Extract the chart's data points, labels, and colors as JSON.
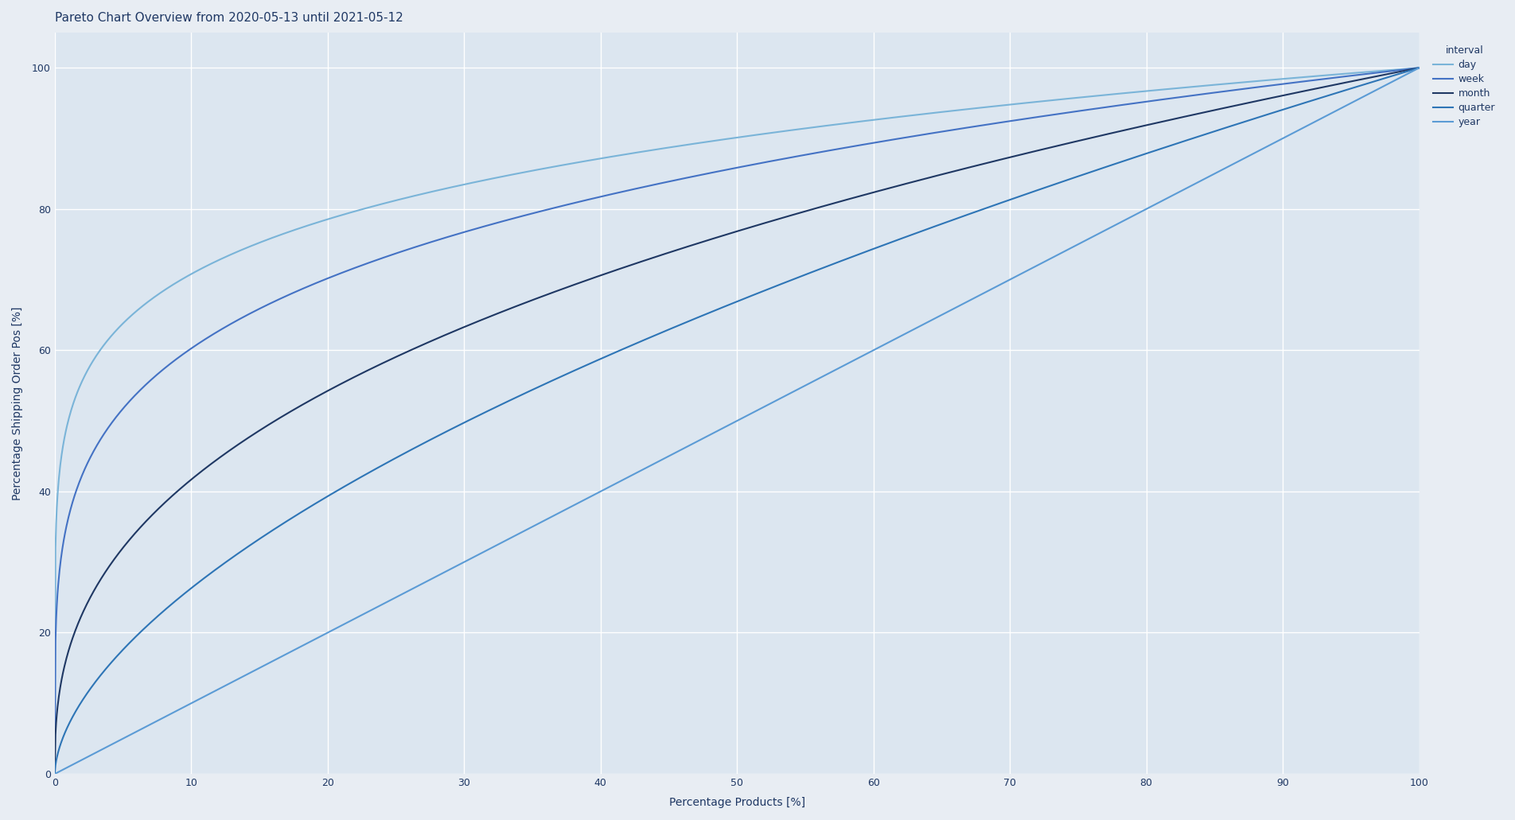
{
  "title": "Pareto Chart Overview from 2020-05-13 until 2021-05-12",
  "xlabel": "Percentage Products [%]",
  "ylabel": "Percentage Shipping Order Pos [%]",
  "fig_bg_color": "#e8edf3",
  "plot_bg_color": "#dce6f0",
  "grid_color": "#ffffff",
  "title_color": "#1f3864",
  "xlim": [
    0,
    100
  ],
  "ylim": [
    0,
    105
  ],
  "xticks": [
    0,
    10,
    20,
    30,
    40,
    50,
    60,
    70,
    80,
    90,
    100
  ],
  "yticks": [
    0,
    20,
    40,
    60,
    80,
    100
  ],
  "title_fontsize": 11,
  "axis_label_fontsize": 10,
  "tick_fontsize": 9,
  "legend_title": "interval",
  "legend_labels": [
    "day",
    "week",
    "month",
    "quarter",
    "year"
  ],
  "line_colors": [
    "#7ab4d8",
    "#4472c4",
    "#1f3864",
    "#2e75b6",
    "#5b9bd5"
  ],
  "curve_powers": [
    0.15,
    0.22,
    0.38,
    0.58,
    1.0
  ],
  "line_widths": [
    1.5,
    1.5,
    1.5,
    1.5,
    1.5
  ]
}
